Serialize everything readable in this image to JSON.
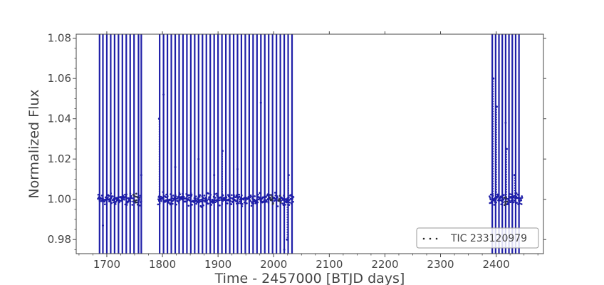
{
  "chart_data": {
    "type": "scatter",
    "title": "",
    "xlabel": "Time - 2457000 [BTJD days]",
    "ylabel": "Normalized Flux",
    "xlim": [
      1645,
      2485
    ],
    "ylim": [
      0.973,
      1.082
    ],
    "x_ticks": [
      1700,
      1800,
      1900,
      2000,
      2100,
      2200,
      2300,
      2400
    ],
    "y_ticks": [
      0.98,
      1.0,
      1.02,
      1.04,
      1.06,
      1.08
    ],
    "y_tick_labels": [
      "0.98",
      "1.00",
      "1.02",
      "1.04",
      "1.06",
      "1.08"
    ],
    "grid": false,
    "legend_position": "bottom-right",
    "series": [
      {
        "name": "TIC 233120979",
        "color": "#1f1fa8",
        "baseline": 1.0,
        "scatter": 0.004,
        "segments": [
          [
            1684,
            1762
          ],
          [
            1792,
            2036
          ],
          [
            2388,
            2447
          ]
        ],
        "gaps": [
          [
            1748,
            1756
          ],
          [
            1993,
            1999
          ],
          [
            2008,
            2013
          ],
          [
            2414,
            2420
          ]
        ],
        "vertical_streaks_x": [
          1687,
          1693,
          1700,
          1707,
          1714,
          1721,
          1728,
          1735,
          1742,
          1749,
          1757,
          1762,
          1795,
          1802,
          1809,
          1816,
          1823,
          1830,
          1837,
          1844,
          1851,
          1858,
          1865,
          1872,
          1879,
          1886,
          1893,
          1900,
          1907,
          1914,
          1921,
          1928,
          1935,
          1942,
          1949,
          1956,
          1963,
          1970,
          1977,
          1984,
          1991,
          1998,
          2005,
          2012,
          2019,
          2026,
          2033,
          2393,
          2399,
          2405,
          2411,
          2417,
          2423,
          2429,
          2435,
          2441
        ],
        "spikes": [
          [
            1693,
            0.987
          ],
          [
            1762,
            1.012
          ],
          [
            1794,
            1.04
          ],
          [
            1802,
            1.052
          ],
          [
            1823,
            1.016
          ],
          [
            1865,
            1.02
          ],
          [
            1893,
            1.012
          ],
          [
            1908,
            1.024
          ],
          [
            1935,
            1.015
          ],
          [
            1977,
            1.048
          ],
          [
            2019,
            0.975
          ],
          [
            2024,
            0.98
          ],
          [
            2027,
            1.012
          ],
          [
            2395,
            1.06
          ],
          [
            2401,
            1.046
          ],
          [
            2417,
            1.038
          ],
          [
            2419,
            1.025
          ],
          [
            2433,
            1.012
          ]
        ]
      }
    ]
  }
}
